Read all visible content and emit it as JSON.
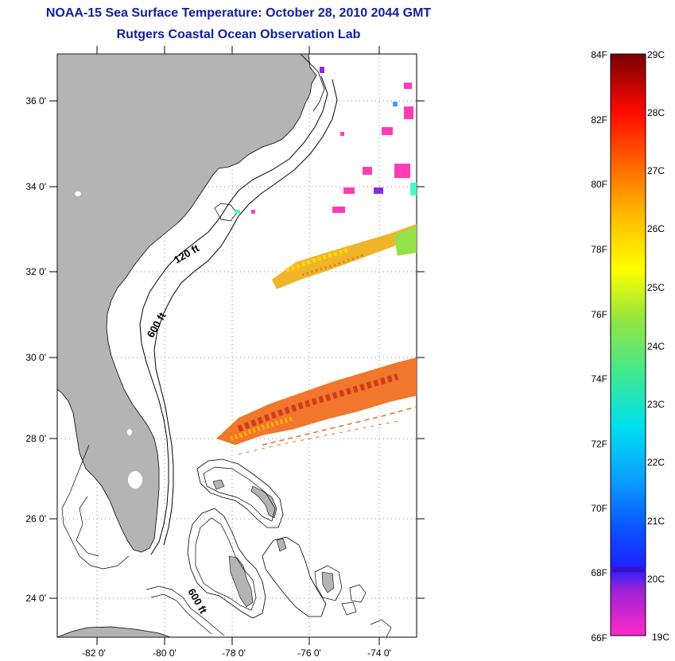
{
  "title": "NOAA-15 Sea Surface Temperature:  October 28, 2010 2044 GMT",
  "subtitle": "Rutgers Coastal Ocean Observation Lab",
  "map": {
    "lat_ticks": [
      "36 0'",
      "34 0'",
      "32 0'",
      "30 0'",
      "28 0'",
      "26 0'",
      "24 0'"
    ],
    "lon_ticks": [
      "-82 0'",
      "-80 0'",
      "-78 0'",
      "-76 0'",
      "-74 0'"
    ],
    "contour_labels": [
      "120 ft",
      "600 ft",
      "600 ft"
    ],
    "land_color": "#b4b4b4"
  },
  "colorbar": {
    "f_labels": [
      "84F",
      "82F",
      "80F",
      "78F",
      "76F",
      "74F",
      "72F",
      "70F",
      "68F",
      "66F"
    ],
    "c_labels": [
      "29C",
      "28C",
      "27C",
      "26C",
      "25C",
      "24C",
      "23C",
      "22C",
      "21C",
      "20C",
      "19C"
    ],
    "colors": [
      "#ff2ac8",
      "#8a2be2",
      "#1a1aff",
      "#0a84ff",
      "#00d8ff",
      "#33e0a0",
      "#8ee63a",
      "#ffff00",
      "#ffb000",
      "#ff6000",
      "#ff0000",
      "#8b0000"
    ]
  }
}
